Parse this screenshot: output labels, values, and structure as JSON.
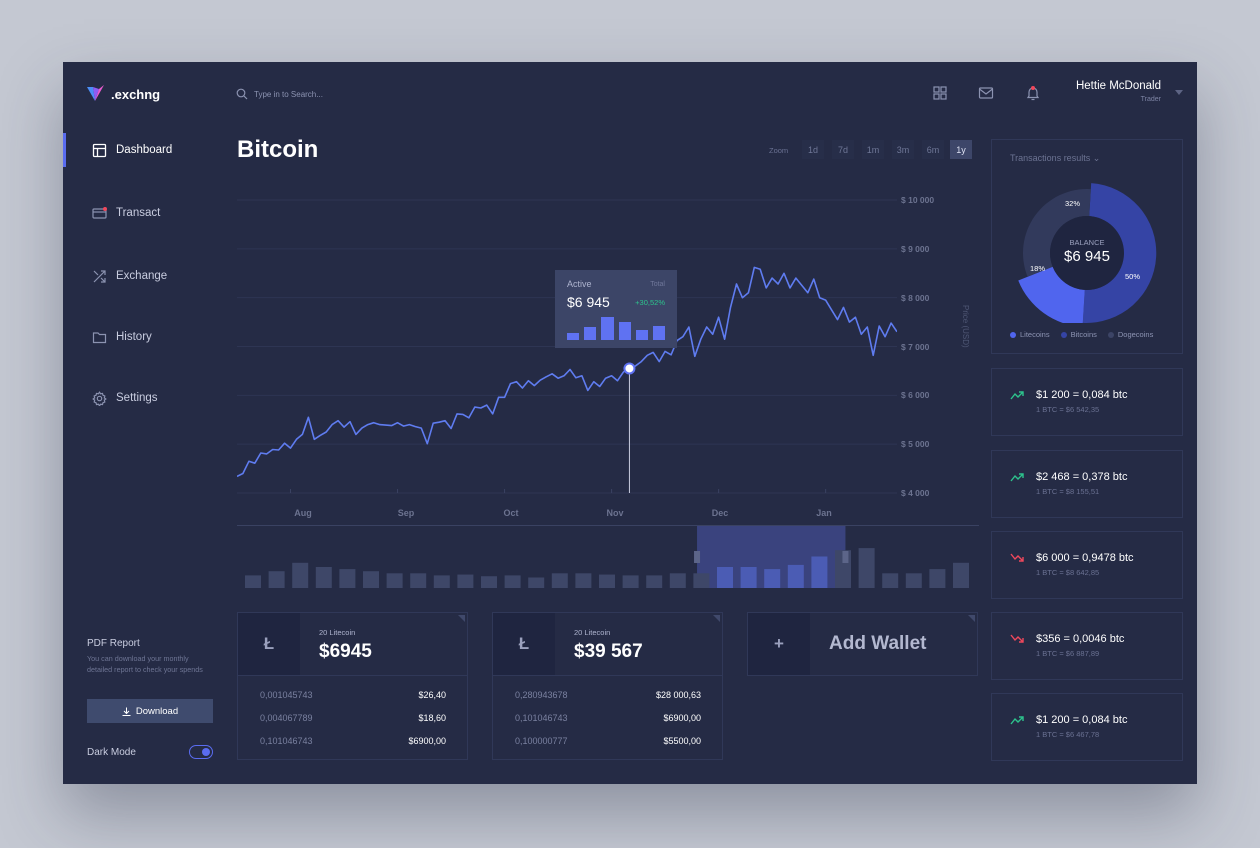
{
  "app": {
    "logo": ".exchng"
  },
  "header": {
    "search_placeholder": "Type in to Search...",
    "user_name": "Hettie McDonald",
    "user_role": "Trader"
  },
  "sidebar": {
    "items": [
      {
        "label": "Dashboard",
        "icon": "dashboard-icon",
        "active": true
      },
      {
        "label": "Transact",
        "icon": "card-icon",
        "active": false
      },
      {
        "label": "Exchange",
        "icon": "shuffle-icon",
        "active": false
      },
      {
        "label": "History",
        "icon": "folder-icon",
        "active": false
      },
      {
        "label": "Settings",
        "icon": "gear-icon",
        "active": false
      }
    ],
    "pdf_title": "PDF Report",
    "pdf_desc": "You can download your monthly detailed report to check your spends",
    "download_label": "Download",
    "dark_mode_label": "Dark Mode",
    "dark_mode_on": true
  },
  "main": {
    "title": "Bitcoin",
    "zoom_label": "Zoom",
    "zoom_options": [
      "1d",
      "7d",
      "1m",
      "3m",
      "6m",
      "1y"
    ],
    "zoom_selected": "1y"
  },
  "chart_data": {
    "type": "line",
    "ylabel": "Price (USD)",
    "ylim": [
      4000,
      10000
    ],
    "y_ticks": [
      "$ 10 000",
      "$ 9 000",
      "$ 8 000",
      "$ 7 000",
      "$ 6 000",
      "$ 5 000",
      "$ 4 000"
    ],
    "x_ticks": [
      "Aug",
      "Sep",
      "Oct",
      "Nov",
      "Dec",
      "Jan"
    ],
    "x_tick_index": [
      9,
      27,
      45,
      63,
      81,
      99
    ],
    "series": [
      {
        "values": [
          4340,
          4400,
          4650,
          4610,
          4820,
          4800,
          4890,
          4880,
          5020,
          4920,
          5100,
          5200,
          5550,
          5100,
          5180,
          5250,
          5400,
          5480,
          5350,
          5460,
          5200,
          5330,
          5400,
          5440,
          5400,
          5390,
          5380,
          5440,
          5370,
          5400,
          5360,
          5330,
          5010,
          5430,
          5450,
          5480,
          5320,
          5620,
          5610,
          5540,
          5760,
          5740,
          5800,
          5620,
          5960,
          5960,
          6240,
          6280,
          6150,
          6300,
          6200,
          6310,
          6380,
          6440,
          6350,
          6400,
          6530,
          6360,
          6400,
          6100,
          6280,
          6180,
          6350,
          6400,
          6300,
          6480,
          6550,
          6600,
          6690,
          6820,
          6880,
          6690,
          6900,
          6830,
          7120,
          7200,
          7400,
          6800,
          7150,
          7400,
          7250,
          7600,
          7150,
          7800,
          8280,
          8000,
          8100,
          8620,
          8580,
          8200,
          8400,
          8280,
          8500,
          8200,
          8400,
          8250,
          8100,
          8380,
          8000,
          7950,
          7750,
          7550,
          7800,
          7500,
          7600,
          7250,
          7400,
          6820,
          7420,
          7200,
          7480,
          7300
        ],
        "color": "#5f7cf0"
      }
    ],
    "tooltip": {
      "label": "Active",
      "total_label": "Total",
      "value": "$6 945",
      "change": "+30,52%",
      "index": 66,
      "bars": [
        0.28,
        0.5,
        0.88,
        0.7,
        0.4,
        0.52
      ]
    },
    "navigator": {
      "volumes": [
        0.3,
        0.4,
        0.6,
        0.5,
        0.45,
        0.4,
        0.35,
        0.35,
        0.3,
        0.32,
        0.28,
        0.3,
        0.25,
        0.35,
        0.35,
        0.32,
        0.3,
        0.3,
        0.35,
        0.35,
        0.5,
        0.5,
        0.45,
        0.55,
        0.75,
        0.9,
        0.95,
        0.35,
        0.35,
        0.45,
        0.6
      ],
      "window": [
        0.62,
        0.82
      ]
    }
  },
  "wallets": [
    {
      "icon": "Ł",
      "label": "20 Litecoin",
      "value": "$6945",
      "rows": [
        [
          "0,001045743",
          "$26,40"
        ],
        [
          "0,004067789",
          "$18,60"
        ],
        [
          "0,101046743",
          "$6900,00"
        ]
      ]
    },
    {
      "icon": "Ł",
      "label": "20 Litecoin",
      "value": "$39 567",
      "rows": [
        [
          "0,280943678",
          "$28 000,63"
        ],
        [
          "0,101046743",
          "$6900,00"
        ],
        [
          "0,100000777",
          "$5500,00"
        ]
      ]
    }
  ],
  "add_wallet": {
    "icon": "+",
    "label": "Add Wallet"
  },
  "results": {
    "title": "Transactions results",
    "balance_label": "BALANCE",
    "balance_value": "$6 945",
    "slices": [
      {
        "name": "Litecoins",
        "pct": "18%",
        "value": 18,
        "color": "#5065ee"
      },
      {
        "name": "Bitcoins",
        "pct": "50%",
        "value": 50,
        "color": "#3544a5"
      },
      {
        "name": "Dogecoins",
        "pct": "32%",
        "value": 32,
        "color": "#323a5c"
      }
    ]
  },
  "transactions": [
    {
      "main": "$1 200 = 0,084 btc",
      "sub": "1 BTC = $6 542,35",
      "dir": "up"
    },
    {
      "main": "$2 468 = 0,378 btc",
      "sub": "1 BTC = $8 155,51",
      "dir": "up"
    },
    {
      "main": "$6 000 = 0,9478 btc",
      "sub": "1 BTC = $8 642,85",
      "dir": "down"
    },
    {
      "main": "$356 = 0,0046 btc",
      "sub": "1 BTC = $6 887,89",
      "dir": "down"
    },
    {
      "main": "$1 200 = 0,084 btc",
      "sub": "1 BTC = $6 467,78",
      "dir": "up"
    }
  ],
  "colors": {
    "accent": "#5a6cf0",
    "up": "#2dc48d",
    "down": "#f0485c",
    "bg": "#252b45"
  }
}
